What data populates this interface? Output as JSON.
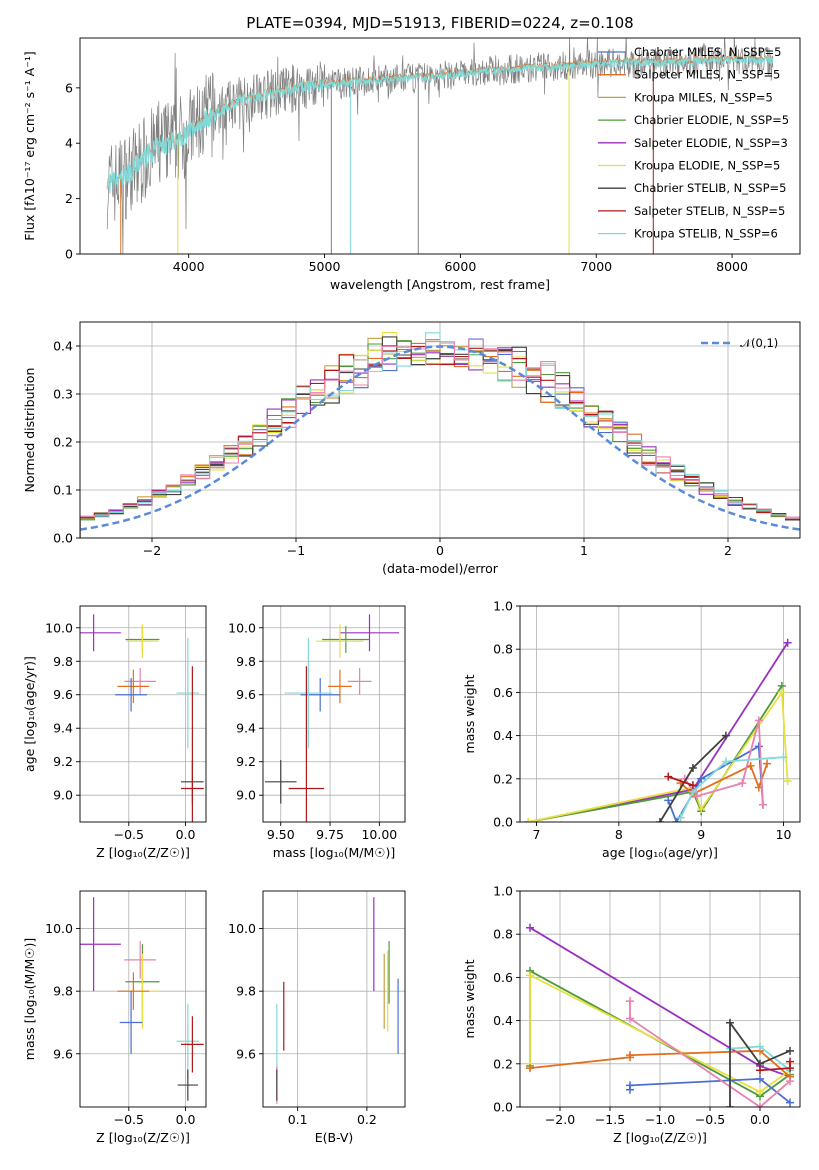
{
  "figure_title": "PLATE=0394, MJD=51913, FIBERID=0224, z=0.108",
  "colors": {
    "data": "#808080",
    "Chabrier MILES": "#4a6fd0",
    "Salpeter MILES": "#e07020",
    "Kroupa MILES": "#c8a040",
    "Chabrier ELODIE": "#4e9a3a",
    "Salpeter ELODIE": "#9a30c0",
    "Kroupa ELODIE": "#e8e040",
    "Chabrier STELIB": "#404040",
    "Salpeter STELIB": "#b01818",
    "Kroupa STELIB": "#80dada",
    "Salpeter MILES alt": "#e880b0",
    "normal": "#5a8ad8"
  },
  "chart_data": [
    {
      "id": "spectrum",
      "type": "line",
      "xlabel": "wavelength [Angstrom, rest frame]",
      "ylabel": "Flux [fλ10⁻¹⁷ erg cm⁻² s⁻¹ A⁻¹]",
      "xlim": [
        3200,
        8500
      ],
      "ylim": [
        0,
        7.8
      ],
      "xticks": [
        4000,
        5000,
        6000,
        7000,
        8000
      ],
      "yticks": [
        0,
        2,
        4,
        6
      ],
      "grid": false,
      "legend_position": "right",
      "legend": [
        "Chabrier MILES, N_SSP=5",
        "Salpeter MILES, N_SSP=5",
        "Kroupa MILES, N_SSP=5",
        "Chabrier ELODIE, N_SSP=5",
        "Salpeter ELODIE, N_SSP=3",
        "Kroupa ELODIE, N_SSP=5",
        "Chabrier STELIB, N_SSP=5",
        "Salpeter STELIB, N_SSP=5",
        "Kroupa STELIB, N_SSP=6"
      ],
      "model_continuum": {
        "x": [
          3400,
          3500,
          3600,
          3700,
          3800,
          3900,
          4000,
          4100,
          4200,
          4400,
          4600,
          4800,
          5000,
          5200,
          5500,
          5800,
          6000,
          6200,
          6500,
          6800,
          7000,
          7200,
          7500,
          7800,
          8000,
          8300
        ],
        "y": [
          2.5,
          2.7,
          3.1,
          3.6,
          3.9,
          4.1,
          4.4,
          4.8,
          5.1,
          5.6,
          5.8,
          6.0,
          6.1,
          6.2,
          6.3,
          6.4,
          6.5,
          6.6,
          6.7,
          6.8,
          6.85,
          6.9,
          6.9,
          7.0,
          7.0,
          7.0
        ]
      }
    },
    {
      "id": "residuals",
      "type": "histogram",
      "xlabel": "(data-model)/error",
      "ylabel": "Normed distribution",
      "xlim": [
        -2.5,
        2.5
      ],
      "ylim": [
        0,
        0.45
      ],
      "xticks": [
        -2,
        -1,
        0,
        1,
        2
      ],
      "yticks": [
        0.0,
        0.1,
        0.2,
        0.3,
        0.4
      ],
      "grid": true,
      "legend": [
        "𝒩(0,1)"
      ],
      "legend_position": "top-right",
      "reference": {
        "mean": 0,
        "sigma": 1
      }
    },
    {
      "id": "age_vs_Z",
      "type": "errorbar",
      "xlabel": "Z [log₁₀(Z/Z☉)]",
      "ylabel": "age  [log₁₀(age/yr)]",
      "xlim": [
        -0.93,
        0.18
      ],
      "ylim": [
        8.84,
        10.13
      ],
      "xticks": [
        -0.5,
        0.0
      ],
      "yticks": [
        9.0,
        9.2,
        9.4,
        9.6,
        9.8,
        10.0
      ],
      "grid": true,
      "points": [
        {
          "model": "Salpeter ELODIE",
          "x": -0.81,
          "y": 9.97,
          "xerr": 0.24,
          "yerr": 0.11
        },
        {
          "model": "Chabrier ELODIE",
          "x": -0.38,
          "y": 9.93,
          "xerr": 0.15,
          "yerr": 0.08
        },
        {
          "model": "Kroupa ELODIE",
          "x": -0.38,
          "y": 9.92,
          "xerr": 0.14,
          "yerr": 0.1
        },
        {
          "model": "Salpeter MILES alt",
          "x": -0.4,
          "y": 9.68,
          "xerr": 0.14,
          "yerr": 0.08
        },
        {
          "model": "Salpeter MILES",
          "x": -0.46,
          "y": 9.65,
          "xerr": 0.14,
          "yerr": 0.1
        },
        {
          "model": "Chabrier MILES",
          "x": -0.48,
          "y": 9.6,
          "xerr": 0.14,
          "yerr": 0.1
        },
        {
          "model": "Kroupa STELIB",
          "x": 0.02,
          "y": 9.61,
          "xerr": 0.1,
          "yerr": 0.33
        },
        {
          "model": "Chabrier STELIB",
          "x": 0.06,
          "y": 9.08,
          "xerr": 0.1,
          "yerr": 0.13
        },
        {
          "model": "Salpeter STELIB",
          "x": 0.06,
          "y": 9.04,
          "xerr": 0.1,
          "yerr": 0.73
        }
      ]
    },
    {
      "id": "age_vs_mass",
      "type": "errorbar",
      "xlabel": "mass [log₁₀(M/M☉)]",
      "ylabel": "",
      "xlim": [
        9.41,
        10.13
      ],
      "ylim": [
        8.84,
        10.13
      ],
      "xticks": [
        9.5,
        9.75,
        10.0
      ],
      "yticks": [
        9.0,
        9.2,
        9.4,
        9.6,
        9.8,
        10.0
      ],
      "grid": true,
      "points": [
        {
          "model": "Salpeter ELODIE",
          "x": 9.95,
          "y": 9.97,
          "xerr": 0.15,
          "yerr": 0.11
        },
        {
          "model": "Chabrier ELODIE",
          "x": 9.83,
          "y": 9.93,
          "xerr": 0.12,
          "yerr": 0.08
        },
        {
          "model": "Kroupa ELODIE",
          "x": 9.8,
          "y": 9.92,
          "xerr": 0.12,
          "yerr": 0.1
        },
        {
          "model": "Salpeter MILES alt",
          "x": 9.9,
          "y": 9.68,
          "xerr": 0.06,
          "yerr": 0.08
        },
        {
          "model": "Salpeter MILES",
          "x": 9.8,
          "y": 9.65,
          "xerr": 0.06,
          "yerr": 0.1
        },
        {
          "model": "Chabrier MILES",
          "x": 9.7,
          "y": 9.6,
          "xerr": 0.1,
          "yerr": 0.1
        },
        {
          "model": "Kroupa STELIB",
          "x": 9.64,
          "y": 9.61,
          "xerr": 0.12,
          "yerr": 0.33
        },
        {
          "model": "Chabrier STELIB",
          "x": 9.5,
          "y": 9.08,
          "xerr": 0.08,
          "yerr": 0.13
        },
        {
          "model": "Salpeter STELIB",
          "x": 9.63,
          "y": 9.04,
          "xerr": 0.09,
          "yerr": 0.73
        }
      ]
    },
    {
      "id": "weight_vs_age",
      "type": "line",
      "xlabel": "age  [log₁₀(age/yr)]",
      "ylabel": "mass weight",
      "xlim": [
        6.8,
        10.2
      ],
      "ylim": [
        0.0,
        1.0
      ],
      "xticks": [
        7,
        8,
        9,
        10
      ],
      "yticks": [
        0.0,
        0.2,
        0.4,
        0.6,
        0.8,
        1.0
      ],
      "grid": true,
      "series": [
        {
          "model": "Salpeter ELODIE",
          "x": [
            6.9,
            8.9,
            10.05
          ],
          "y": [
            0.0,
            0.15,
            0.83
          ]
        },
        {
          "model": "Chabrier ELODIE",
          "x": [
            6.9,
            8.9,
            9.0,
            9.98
          ],
          "y": [
            0.0,
            0.14,
            0.05,
            0.63
          ]
        },
        {
          "model": "Kroupa ELODIE",
          "x": [
            6.9,
            8.9,
            9.0,
            9.98,
            10.05
          ],
          "y": [
            0.0,
            0.16,
            0.06,
            0.6,
            0.19
          ]
        },
        {
          "model": "Chabrier MILES",
          "x": [
            8.6,
            8.7,
            9.0,
            9.7,
            9.75
          ],
          "y": [
            0.1,
            0.0,
            0.2,
            0.35,
            0.08
          ]
        },
        {
          "model": "Salpeter MILES",
          "x": [
            8.75,
            8.9,
            9.6,
            9.7,
            9.8
          ],
          "y": [
            0.18,
            0.13,
            0.26,
            0.16,
            0.27
          ]
        },
        {
          "model": "Salpeter MILES alt",
          "x": [
            8.8,
            8.95,
            9.5,
            9.7,
            9.75
          ],
          "y": [
            0.2,
            0.12,
            0.18,
            0.47,
            0.08
          ]
        },
        {
          "model": "Kroupa STELIB",
          "x": [
            8.75,
            8.9,
            9.3,
            10.0
          ],
          "y": [
            0.02,
            0.14,
            0.28,
            0.3
          ]
        },
        {
          "model": "Chabrier STELIB",
          "x": [
            8.5,
            8.9,
            9.3
          ],
          "y": [
            0.0,
            0.25,
            0.4
          ]
        },
        {
          "model": "Salpeter STELIB",
          "x": [
            8.6,
            8.9
          ],
          "y": [
            0.21,
            0.17
          ]
        }
      ]
    },
    {
      "id": "mass_vs_Z",
      "type": "errorbar",
      "xlabel": "Z [log₁₀(Z/Z☉)]",
      "ylabel": "mass [log₁₀(M/M☉)]",
      "xlim": [
        -0.93,
        0.18
      ],
      "ylim": [
        9.43,
        10.12
      ],
      "xticks": [
        -0.5,
        0.0
      ],
      "yticks": [
        9.6,
        9.8,
        10.0
      ],
      "grid": true,
      "points": [
        {
          "model": "Salpeter ELODIE",
          "x": -0.81,
          "y": 9.95,
          "xerr": 0.24,
          "yerr": 0.15
        },
        {
          "model": "Salpeter MILES alt",
          "x": -0.4,
          "y": 9.9,
          "xerr": 0.14,
          "yerr": 0.06
        },
        {
          "model": "Chabrier ELODIE",
          "x": -0.38,
          "y": 9.83,
          "xerr": 0.15,
          "yerr": 0.12
        },
        {
          "model": "Kroupa ELODIE",
          "x": -0.38,
          "y": 9.8,
          "xerr": 0.14,
          "yerr": 0.12
        },
        {
          "model": "Salpeter MILES",
          "x": -0.46,
          "y": 9.8,
          "xerr": 0.14,
          "yerr": 0.06
        },
        {
          "model": "Chabrier MILES",
          "x": -0.48,
          "y": 9.7,
          "xerr": 0.1,
          "yerr": 0.1
        },
        {
          "model": "Kroupa STELIB",
          "x": 0.02,
          "y": 9.64,
          "xerr": 0.1,
          "yerr": 0.12
        },
        {
          "model": "Salpeter STELIB",
          "x": 0.06,
          "y": 9.63,
          "xerr": 0.1,
          "yerr": 0.09
        },
        {
          "model": "Chabrier STELIB",
          "x": 0.02,
          "y": 9.5,
          "xerr": 0.09,
          "yerr": 0.05
        }
      ]
    },
    {
      "id": "mass_vs_ebv",
      "type": "errorbar",
      "xlabel": "E(B-V)",
      "ylabel": "",
      "xlim": [
        0.05,
        0.255
      ],
      "ylim": [
        9.43,
        10.12
      ],
      "xticks": [
        0.1,
        0.2
      ],
      "yticks": [
        9.6,
        9.8,
        10.0
      ],
      "grid": true,
      "points": [
        {
          "model": "Kroupa STELIB",
          "x": 0.07,
          "y": 9.64,
          "xerr": 0.0,
          "yerr": 0.12
        },
        {
          "model": "Salpeter MILES alt",
          "x": 0.07,
          "y": 9.5,
          "xerr": 0.0,
          "yerr": 0.06
        },
        {
          "model": "Chabrier STELIB",
          "x": 0.07,
          "y": 9.5,
          "xerr": 0.0,
          "yerr": 0.05
        },
        {
          "model": "Salpeter STELIB",
          "x": 0.08,
          "y": 9.72,
          "xerr": 0.0,
          "yerr": 0.11
        },
        {
          "model": "Salpeter ELODIE",
          "x": 0.21,
          "y": 9.95,
          "xerr": 0.0,
          "yerr": 0.15
        },
        {
          "model": "Kroupa MILES",
          "x": 0.225,
          "y": 9.8,
          "xerr": 0.0,
          "yerr": 0.12
        },
        {
          "model": "Kroupa ELODIE",
          "x": 0.23,
          "y": 9.8,
          "xerr": 0.0,
          "yerr": 0.13
        },
        {
          "model": "Chabrier ELODIE",
          "x": 0.232,
          "y": 9.86,
          "xerr": 0.0,
          "yerr": 0.1
        },
        {
          "model": "Chabrier MILES",
          "x": 0.245,
          "y": 9.72,
          "xerr": 0.0,
          "yerr": 0.12
        }
      ]
    },
    {
      "id": "weight_vs_Z",
      "type": "line",
      "xlabel": "Z [log₁₀(Z/Z☉)]",
      "ylabel": "mass weight",
      "xlim": [
        -2.4,
        0.4
      ],
      "ylim": [
        0.0,
        1.0
      ],
      "xticks": [
        -2.0,
        -1.5,
        -1.0,
        -0.5,
        0.0
      ],
      "yticks": [
        0.0,
        0.2,
        0.4,
        0.6,
        0.8,
        1.0
      ],
      "grid": true,
      "series": [
        {
          "model": "Salpeter ELODIE",
          "x": [
            -2.3,
            0.0,
            0.3
          ],
          "y": [
            0.83,
            0.19,
            0.14
          ]
        },
        {
          "model": "Chabrier ELODIE",
          "x": [
            -2.3,
            -2.3,
            0.0,
            0.3
          ],
          "y": [
            0.19,
            0.63,
            0.05,
            0.15
          ]
        },
        {
          "model": "Kroupa ELODIE",
          "x": [
            -2.3,
            -2.3,
            0.0,
            0.3
          ],
          "y": [
            0.2,
            0.61,
            0.07,
            0.17
          ]
        },
        {
          "model": "Salpeter MILES",
          "x": [
            -2.3,
            -1.3,
            -1.3,
            0.0,
            0.3
          ],
          "y": [
            0.18,
            0.23,
            0.24,
            0.26,
            0.14
          ]
        },
        {
          "model": "Chabrier MILES",
          "x": [
            -1.3,
            -1.3,
            0.0,
            0.3
          ],
          "y": [
            0.08,
            0.1,
            0.13,
            0.02
          ]
        },
        {
          "model": "Salpeter MILES alt",
          "x": [
            -1.3,
            -1.3,
            0.0,
            0.3
          ],
          "y": [
            0.49,
            0.41,
            0.0,
            0.12
          ]
        },
        {
          "model": "Kroupa STELIB",
          "x": [
            -0.3,
            0.0,
            0.3
          ],
          "y": [
            0.27,
            0.28,
            0.17
          ]
        },
        {
          "model": "Chabrier STELIB",
          "x": [
            -0.3,
            -0.3,
            0.0,
            0.3
          ],
          "y": [
            0.0,
            0.39,
            0.2,
            0.26
          ]
        },
        {
          "model": "Salpeter STELIB",
          "x": [
            0.0,
            0.3,
            0.3
          ],
          "y": [
            0.17,
            0.18,
            0.21
          ]
        }
      ]
    }
  ]
}
